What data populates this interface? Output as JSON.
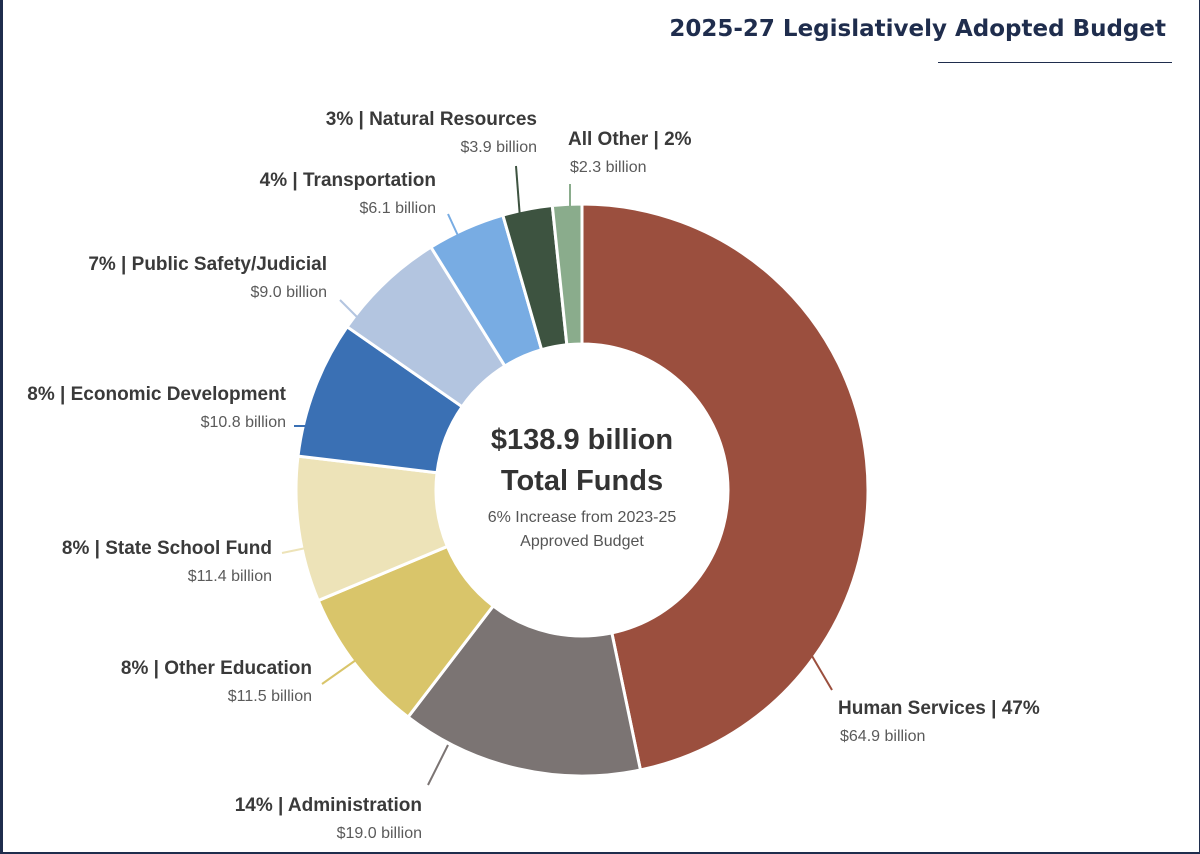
{
  "header": {
    "title": "2025-27 Legislatively Adopted Budget"
  },
  "center": {
    "line1": "$138.9 billion",
    "line2": "Total Funds",
    "note1": "6% Increase from 2023-25",
    "note2": "Approved Budget"
  },
  "chart_data": {
    "type": "pie",
    "donut": true,
    "unit": "billion",
    "categories": [
      "Human Services",
      "Administration",
      "Other Education",
      "State School Fund",
      "Economic Development",
      "Public Safety/Judicial",
      "Transportation",
      "Natural Resources",
      "All Other"
    ],
    "values": [
      64.9,
      19.0,
      11.5,
      11.4,
      10.8,
      9.0,
      6.1,
      3.9,
      2.3
    ],
    "colors": [
      "#9b4f3e",
      "#7b7473",
      "#d9c56a",
      "#ede3b8",
      "#3a70b4",
      "#b3c5e0",
      "#78ace3",
      "#3d5340",
      "#8aac8c"
    ],
    "labels": [
      {
        "main": "Human Services | 47%",
        "sub": "$64.9 billion"
      },
      {
        "main": "14% | Administration",
        "sub": "$19.0 billion"
      },
      {
        "main": "8% | Other Education",
        "sub": "$11.5 billion"
      },
      {
        "main": "8% | State School Fund",
        "sub": "$11.4 billion"
      },
      {
        "main": "8% | Economic Development",
        "sub": "$10.8 billion"
      },
      {
        "main": "7% | Public Safety/Judicial",
        "sub": "$9.0 billion"
      },
      {
        "main": "4% | Transportation",
        "sub": "$6.1 billion"
      },
      {
        "main": "3% | Natural Resources",
        "sub": "$3.9 billion"
      },
      {
        "main": "All Other | 2%",
        "sub": "$2.3 billion"
      }
    ]
  }
}
